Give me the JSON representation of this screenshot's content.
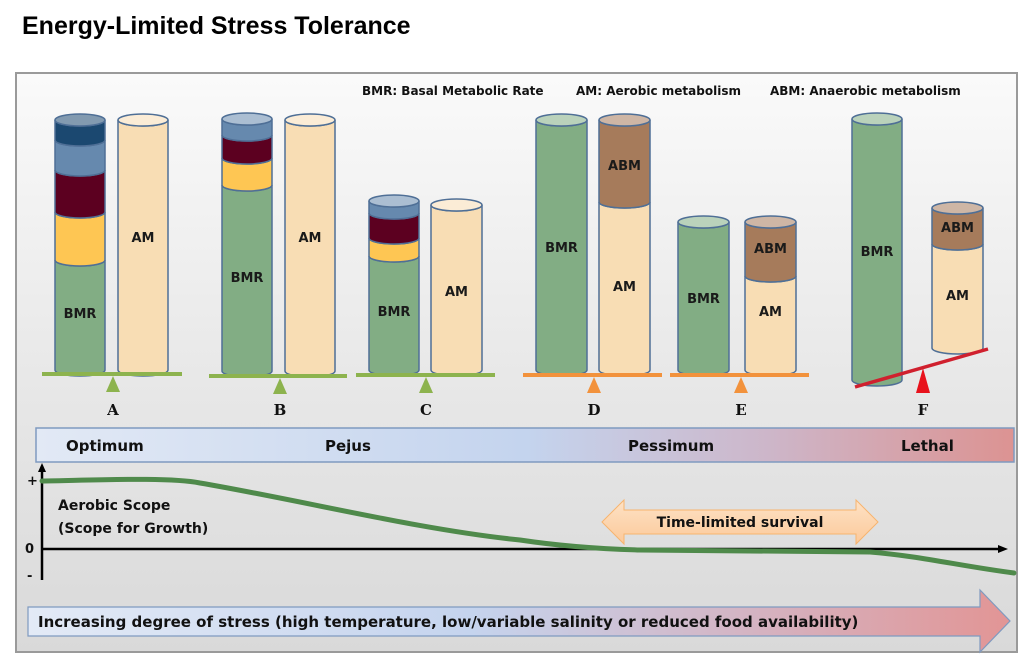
{
  "title": "Energy-Limited Stress Tolerance",
  "legend": {
    "bmr": "BMR: Basal Metabolic Rate",
    "am": "AM: Aerobic metabolism",
    "abm": "ABM: Anaerobic metabolism"
  },
  "colors": {
    "bmr": "#82ad84",
    "am": "#f8ddb4",
    "abm": "#a67b5b",
    "yellow": "#fec653",
    "maroon": "#5c0020",
    "steel_blue": "#6689ae",
    "navy": "#1b4870",
    "scale_green": "#8db34e",
    "scale_orange": "#f2923c",
    "scale_red": "#d0202e",
    "curve": "#4f8a4b"
  },
  "scenarios": [
    {
      "label": "A",
      "bmr_label": "BMR",
      "am_label": "AM",
      "scale": "green"
    },
    {
      "label": "B",
      "bmr_label": "BMR",
      "am_label": "AM",
      "scale": "green"
    },
    {
      "label": "C",
      "bmr_label": "BMR",
      "am_label": "AM",
      "scale": "green"
    },
    {
      "label": "D",
      "bmr_label": "BMR",
      "am_label": "AM",
      "abm_label": "ABM",
      "scale": "orange"
    },
    {
      "label": "E",
      "bmr_label": "BMR",
      "am_label": "AM",
      "abm_label": "ABM",
      "scale": "orange"
    },
    {
      "label": "F",
      "bmr_label": "BMR",
      "am_label": "AM",
      "abm_label": "ABM",
      "scale": "red"
    }
  ],
  "zones": [
    "Optimum",
    "Pejus",
    "Pessimum",
    "Lethal"
  ],
  "graph": {
    "y_plus": "+",
    "y_zero": "0",
    "y_minus": "-",
    "ylabel_line1": "Aerobic Scope",
    "ylabel_line2": "(Scope for Growth)",
    "annotation": "Time-limited survival"
  },
  "stress_arrow": "Increasing degree of stress (high temperature, low/variable salinity or reduced food availability)"
}
